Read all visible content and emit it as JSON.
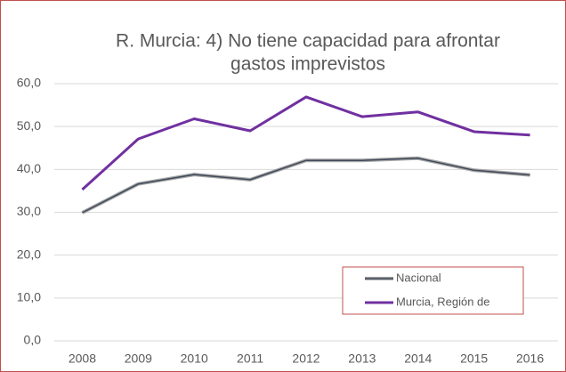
{
  "chart_data": {
    "type": "line",
    "title": [
      "R. Murcia: 4) No tiene capacidad para afrontar",
      "gastos imprevistos"
    ],
    "categories": [
      "2008",
      "2009",
      "2010",
      "2011",
      "2012",
      "2013",
      "2014",
      "2015",
      "2016"
    ],
    "series": [
      {
        "name": "Nacional",
        "color": "#404a5a",
        "values": [
          29.9,
          36.6,
          38.8,
          37.6,
          42.1,
          42.1,
          42.6,
          39.8,
          38.7
        ]
      },
      {
        "name": "Murcia, Región de",
        "color": "#7030a0",
        "values": [
          35.3,
          47.1,
          51.8,
          49.0,
          56.9,
          52.3,
          53.4,
          48.8,
          48.0
        ]
      }
    ],
    "ylim": [
      0,
      60
    ],
    "yticks": [
      {
        "value": 0,
        "label": "0,0"
      },
      {
        "value": 10,
        "label": "10,0"
      },
      {
        "value": 20,
        "label": "20,0"
      },
      {
        "value": 30,
        "label": "30,0"
      },
      {
        "value": 40,
        "label": "40,0"
      },
      {
        "value": 50,
        "label": "50,0"
      },
      {
        "value": 60,
        "label": "60,0"
      }
    ],
    "grid": true,
    "legend": "bottom-right"
  }
}
